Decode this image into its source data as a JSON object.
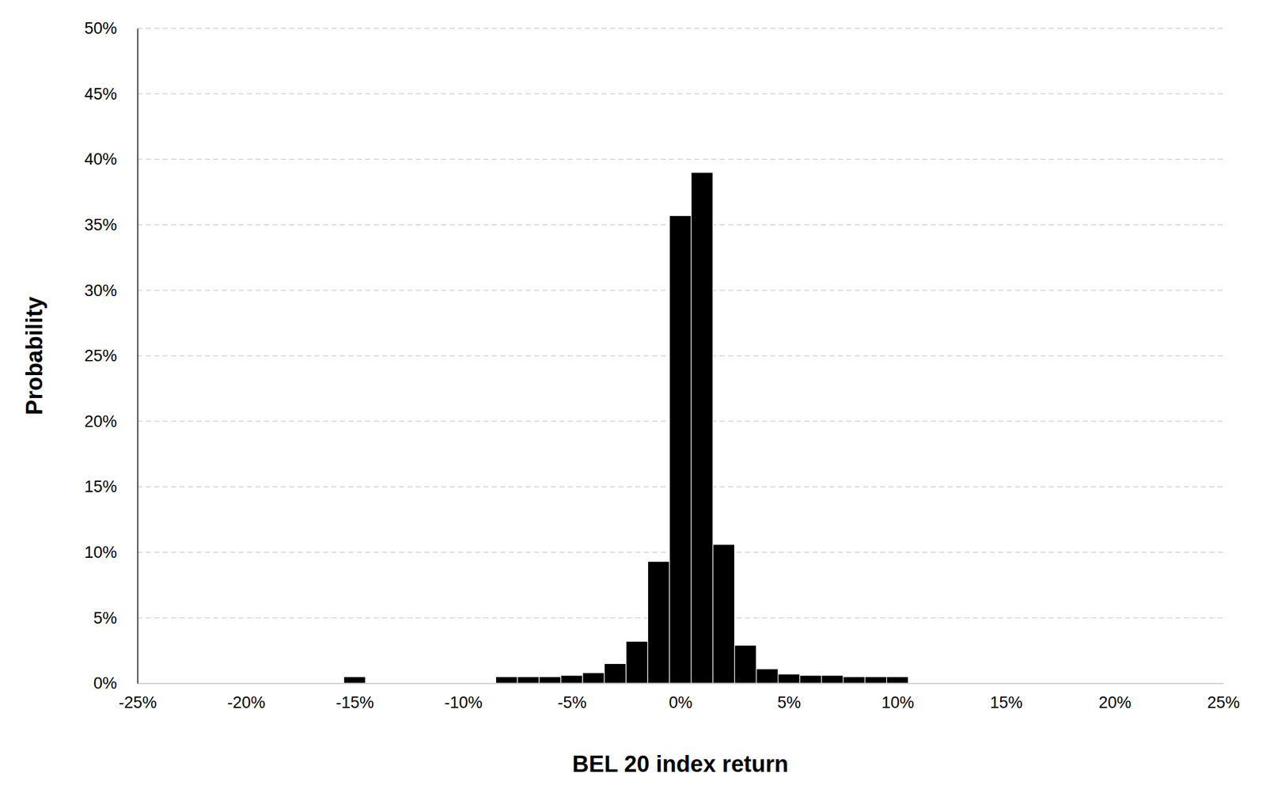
{
  "chart_data": {
    "type": "histogram",
    "x_label": "BEL 20 index return",
    "y_label": "Probability",
    "bins": [
      -15.5,
      -14.5,
      -13.5,
      -12.5,
      -11.5,
      -10.5,
      -9.5,
      -8.5,
      -7.5,
      -6.5,
      -5.5,
      -4.5,
      -3.5,
      -2.5,
      -1.5,
      -0.5,
      0.5,
      1.5,
      2.5,
      3.5,
      4.5,
      5.5,
      6.5,
      7.5,
      8.5,
      9.5,
      10.5
    ],
    "values": [
      0.5,
      0,
      0,
      0,
      0,
      0,
      0,
      0.5,
      0.5,
      0.5,
      0.6,
      0.8,
      1.5,
      3.2,
      9.3,
      35.7,
      39.0,
      10.6,
      2.9,
      1.1,
      0.7,
      0.6,
      0.6,
      0.5,
      0.5,
      0.5
    ],
    "color": "#000000",
    "xlim": [
      -25,
      25
    ],
    "ylim": [
      0,
      50
    ],
    "xticks": [
      {
        "value": -25,
        "label": "-25%"
      },
      {
        "value": -20,
        "label": "-20%"
      },
      {
        "value": -15,
        "label": "-15%"
      },
      {
        "value": -10,
        "label": "-10%"
      },
      {
        "value": -5,
        "label": "-5%"
      },
      {
        "value": 0,
        "label": "0%"
      },
      {
        "value": 5,
        "label": "5%"
      },
      {
        "value": 10,
        "label": "10%"
      },
      {
        "value": 15,
        "label": "15%"
      },
      {
        "value": 20,
        "label": "20%"
      },
      {
        "value": 25,
        "label": "25%"
      }
    ],
    "yticks": [
      {
        "value": 0,
        "label": "0%"
      },
      {
        "value": 5,
        "label": "5%"
      },
      {
        "value": 10,
        "label": "10%"
      },
      {
        "value": 15,
        "label": "15%"
      },
      {
        "value": 20,
        "label": "20%"
      },
      {
        "value": 25,
        "label": "25%"
      },
      {
        "value": 30,
        "label": "30%"
      },
      {
        "value": 35,
        "label": "35%"
      },
      {
        "value": 40,
        "label": "40%"
      },
      {
        "value": 45,
        "label": "45%"
      },
      {
        "value": 50,
        "label": "50%"
      }
    ],
    "grid": true
  }
}
